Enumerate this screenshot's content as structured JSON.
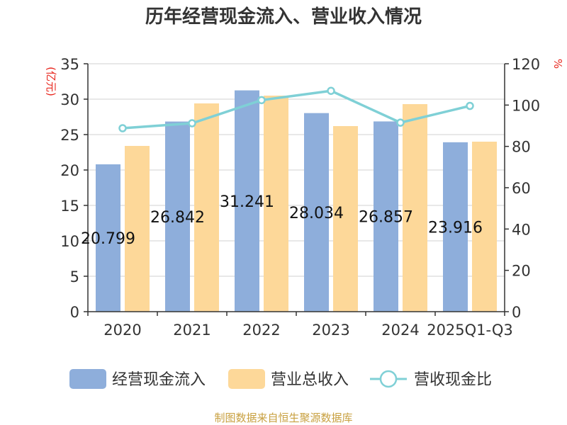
{
  "chart_data": {
    "type": "bar",
    "title": "历年经营现金流入、营业收入情况",
    "categories": [
      "2020",
      "2021",
      "2022",
      "2023",
      "2024",
      "2025Q1-Q3"
    ],
    "y_left": {
      "unit_label": "(亿元)",
      "ylim": [
        0,
        35
      ],
      "ticks": [
        "0",
        "5",
        "10",
        "15",
        "20",
        "25",
        "30",
        "35"
      ]
    },
    "y_right": {
      "unit_label": "%",
      "ylim": [
        0,
        120
      ],
      "ticks": [
        "0",
        "20",
        "40",
        "60",
        "80",
        "100",
        "120"
      ]
    },
    "series": [
      {
        "name": "经营现金流入",
        "kind": "bar",
        "axis": "left",
        "color": "#8eaedb",
        "values": [
          20.799,
          26.842,
          31.241,
          28.034,
          26.857,
          23.916
        ],
        "labels": [
          "20.799",
          "26.842",
          "31.241",
          "28.034",
          "26.857",
          "23.916"
        ]
      },
      {
        "name": "营业总收入",
        "kind": "bar",
        "axis": "left",
        "color": "#fdd899",
        "values": [
          23.4,
          29.4,
          30.5,
          26.2,
          29.3,
          24.0
        ]
      },
      {
        "name": "营收现金比",
        "kind": "line",
        "axis": "right",
        "color": "#7fd0d6",
        "values": [
          88.8,
          91.2,
          102.4,
          106.9,
          91.5,
          99.6
        ]
      }
    ],
    "legend_position": "bottom",
    "grid": true,
    "source": "制图数据来自恒生聚源数据库"
  }
}
